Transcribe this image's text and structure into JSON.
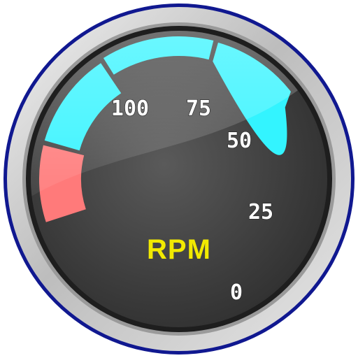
{
  "gauge": {
    "unit_label": "RPM",
    "scale_labels": [
      {
        "value": "100"
      },
      {
        "value": "75"
      },
      {
        "value": "50"
      },
      {
        "value": "25"
      },
      {
        "value": "0"
      }
    ],
    "colors": {
      "bezel_outer": "#101890",
      "bezel_silver": "#c8c8c8",
      "face_dark": "#3a3a3a",
      "redline_zone": "#ff7a7a",
      "normal_zone": "#33f4ff",
      "unit_text": "#f2ea00"
    }
  }
}
